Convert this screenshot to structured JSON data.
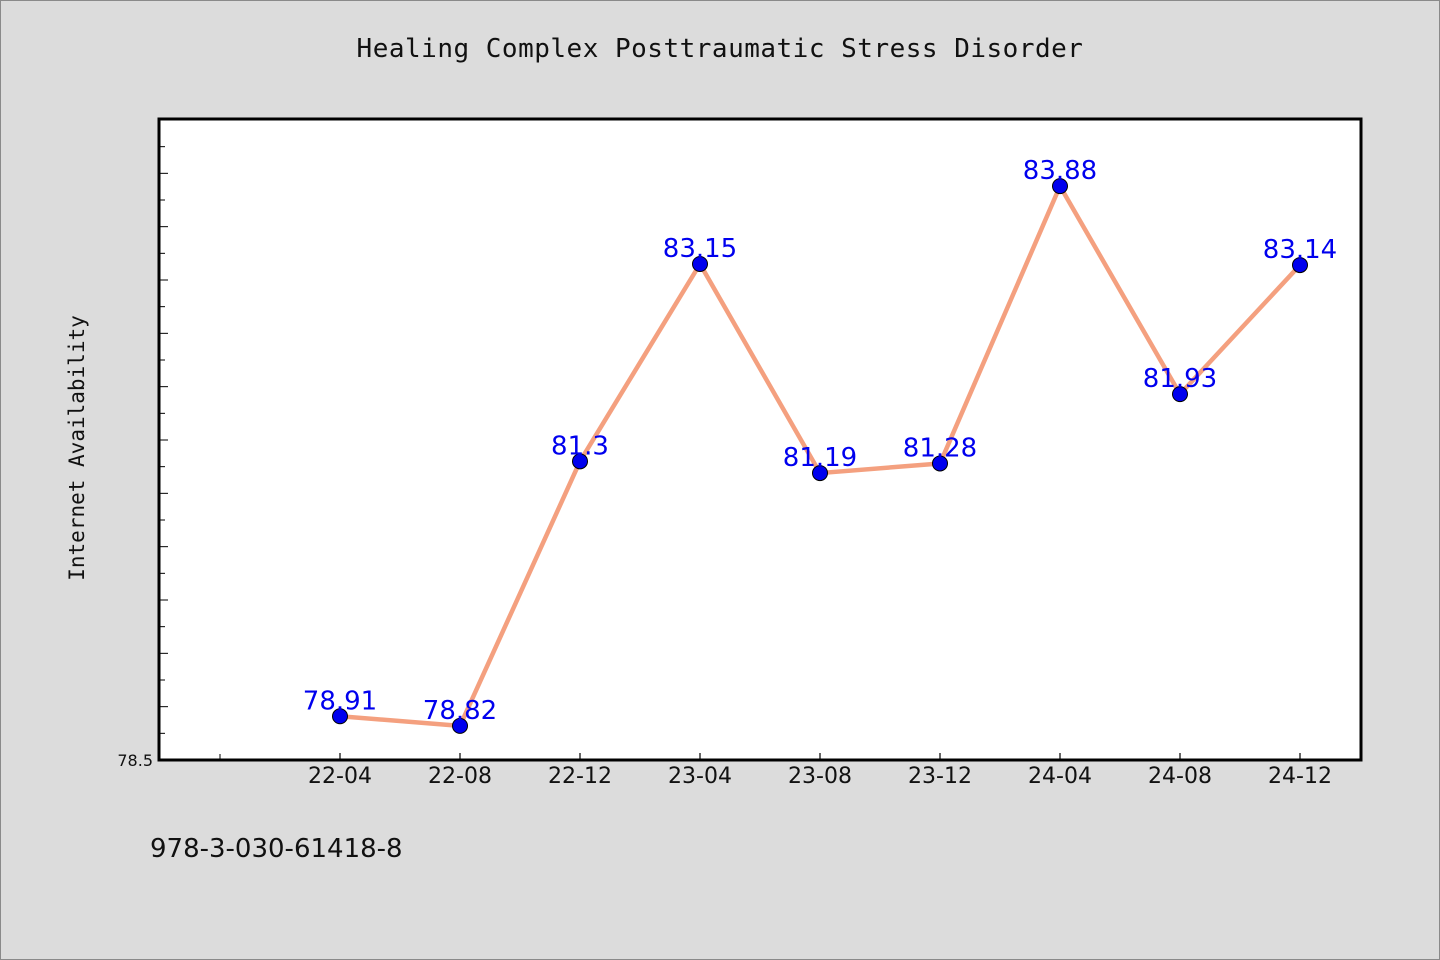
{
  "chart_data": {
    "type": "line",
    "title": "Healing Complex Posttraumatic Stress Disorder",
    "xlabel": "",
    "ylabel": "Internet Availability",
    "categories": [
      "22-04",
      "22-08",
      "22-12",
      "23-04",
      "23-08",
      "23-12",
      "24-04",
      "24-08",
      "24-12"
    ],
    "series": [
      {
        "values": [
          78.91,
          78.82,
          81.3,
          83.15,
          81.19,
          81.28,
          83.88,
          81.93,
          83.14
        ],
        "labels": [
          "78.91",
          "78.82",
          "81.3",
          "83.15",
          "81.19",
          "81.28",
          "83.88",
          "81.93",
          "83.14"
        ]
      }
    ],
    "ylim": [
      78.5,
      84.5
    ],
    "y_tick_label": "78.5",
    "x_axis_start": "21-12",
    "grid": false,
    "line_color": "#f4a07f",
    "marker_color": "#0000ee",
    "label_color": "#0000ee"
  },
  "footer": {
    "text": "978-3-030-61418-8"
  }
}
